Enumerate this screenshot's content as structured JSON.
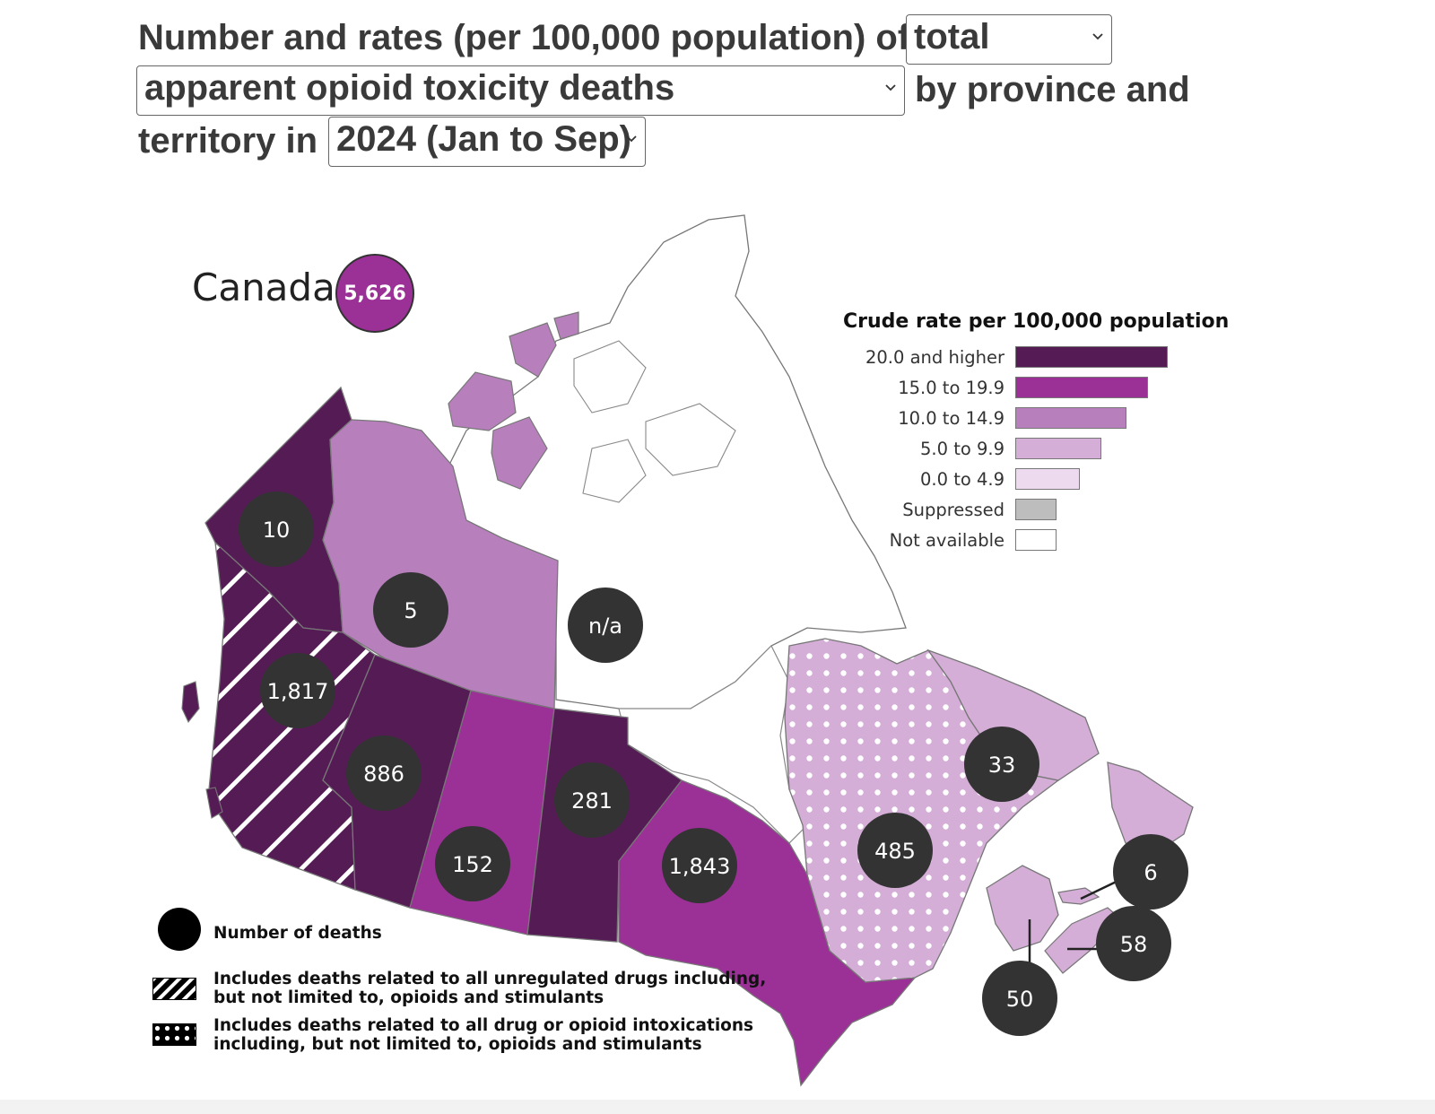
{
  "header": {
    "title_part1": "Number and rates (per 100,000 population) of",
    "select_measure": "total",
    "select_substance": "apparent opioid toxicity deaths",
    "title_part2": "by province and",
    "title_part3": "territory in",
    "select_period": "2024 (Jan to Sep)"
  },
  "canada": {
    "label": "Canada",
    "total": "5,626"
  },
  "legend": {
    "title": "Crude rate per 100,000 population",
    "items": [
      {
        "label": "20.0 and higher",
        "color": "#541b54"
      },
      {
        "label": "15.0 to 19.9",
        "color": "#9b3096"
      },
      {
        "label": "10.0 to 14.9",
        "color": "#b780bd"
      },
      {
        "label": "5.0 to 9.9",
        "color": "#d4aed7"
      },
      {
        "label": "0.0 to 4.9",
        "color": "#eedaef"
      },
      {
        "label": "Suppressed",
        "color": "#bdbdbd"
      },
      {
        "label": "Not available",
        "color": "#ffffff"
      }
    ]
  },
  "key": {
    "bubble": "Number of deaths",
    "hatch": "Includes deaths related to all unregulated drugs including, but not limited to, opioids and stimulants",
    "dots": "Includes deaths related to all drug or opioid intoxications including, but not limited to, opioids and stimulants"
  },
  "regions": {
    "yukon": {
      "deaths": "10",
      "color": "#541b54"
    },
    "northwest_territories": {
      "deaths": "5",
      "color": "#b780bd"
    },
    "nunavut": {
      "deaths": "n/a",
      "color": "#ffffff"
    },
    "british_columbia": {
      "deaths": "1,817",
      "color": "#541b54"
    },
    "alberta": {
      "deaths": "886",
      "color": "#541b54"
    },
    "saskatchewan": {
      "deaths": "152",
      "color": "#9b3096"
    },
    "manitoba": {
      "deaths": "281",
      "color": "#541b54"
    },
    "ontario": {
      "deaths": "1,843",
      "color": "#9b3096"
    },
    "quebec": {
      "deaths": "485",
      "color": "#d4aed7"
    },
    "newfoundland_labrador": {
      "deaths": "33",
      "color": "#d4aed7"
    },
    "prince_edward_island": {
      "deaths": "6",
      "color": "#d4aed7"
    },
    "nova_scotia": {
      "deaths": "58",
      "color": "#d4aed7"
    },
    "new_brunswick": {
      "deaths": "50",
      "color": "#d4aed7"
    }
  },
  "bubble_color": "#333333"
}
